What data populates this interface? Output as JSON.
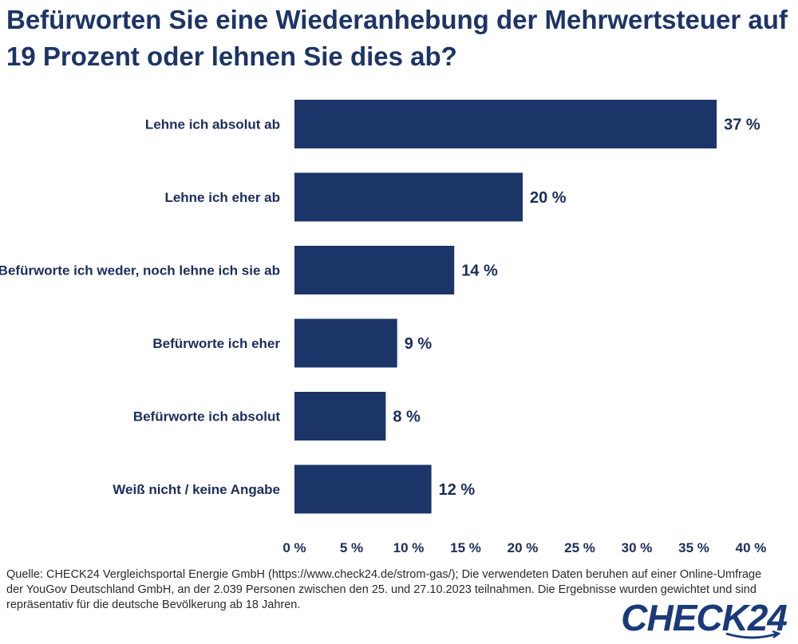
{
  "title": "Befürworten Sie eine Wiederanhebung der Mehrwertsteuer auf 19 Prozent oder lehnen Sie dies ab?",
  "source": "Quelle: CHECK24 Vergleichsportal Energie GmbH (https://www.check24.de/strom-gas/); Die verwendeten Daten beruhen auf einer Online-Umfrage der YouGov Deutschland GmbH, an der 2.039 Personen zwischen den 25. und 27.10.2023 teilnahmen. Die Ergebnisse wurden gewichtet und sind repräsentativ für die deutsche Bevölkerung ab 18 Jahren.",
  "brand": "CHECK24",
  "colors": {
    "bar": "#1b3568",
    "text": "#1b2d5c"
  },
  "chart_data": {
    "type": "bar",
    "orientation": "horizontal",
    "categories": [
      "Lehne ich absolut ab",
      "Lehne ich eher ab",
      "Befürworte ich weder, noch lehne ich sie ab",
      "Befürworte ich eher",
      "Befürworte ich absolut",
      "Weiß nicht / keine Angabe"
    ],
    "values": [
      37,
      20,
      14,
      9,
      8,
      12
    ],
    "value_labels": [
      "37 %",
      "20 %",
      "14 %",
      "9 %",
      "8 %",
      "12 %"
    ],
    "xlim": [
      0,
      40
    ],
    "ticks": [
      0,
      5,
      10,
      15,
      20,
      25,
      30,
      35,
      40
    ],
    "tick_labels": [
      "0 %",
      "5 %",
      "10 %",
      "15 %",
      "20 %",
      "25 %",
      "30 %",
      "35 %",
      "40 %"
    ],
    "grid": false,
    "legend": "none"
  }
}
